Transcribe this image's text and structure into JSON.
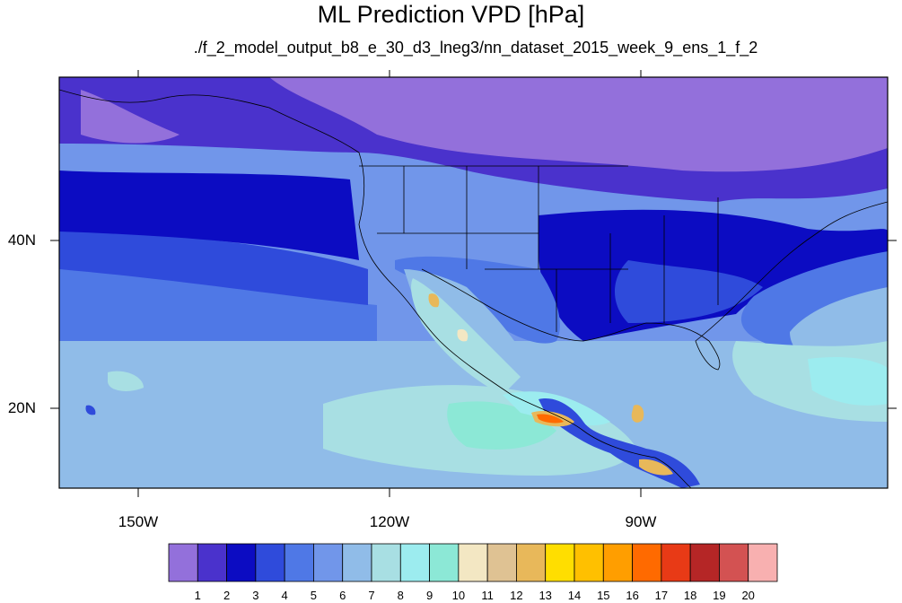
{
  "title": "ML Prediction VPD [hPa]",
  "subtitle": "./f_2_model_output_b8_e_30_d3_lneg3/nn_dataset_2015_week_9_ens_1_f_2",
  "map": {
    "lat_labels": [
      "40N",
      "20N"
    ],
    "lon_labels": [
      "150W",
      "120W",
      "90W"
    ]
  },
  "colorbar": {
    "colors": [
      "#9370db",
      "#4a32cc",
      "#0c0cc2",
      "#2f4bdb",
      "#4f78e6",
      "#7196ea",
      "#90bce8",
      "#a8dfe3",
      "#9cecef",
      "#8ce8d6",
      "#f3e7c3",
      "#dfc293",
      "#e8b85a",
      "#ffde00",
      "#ffc000",
      "#ff9e00",
      "#ff6a00",
      "#e83a16",
      "#b52626",
      "#d35252",
      "#f8b0b0"
    ],
    "labels": [
      "1",
      "2",
      "3",
      "4",
      "5",
      "6",
      "7",
      "8",
      "9",
      "10",
      "11",
      "12",
      "13",
      "14",
      "15",
      "16",
      "17",
      "18",
      "19",
      "20"
    ]
  }
}
